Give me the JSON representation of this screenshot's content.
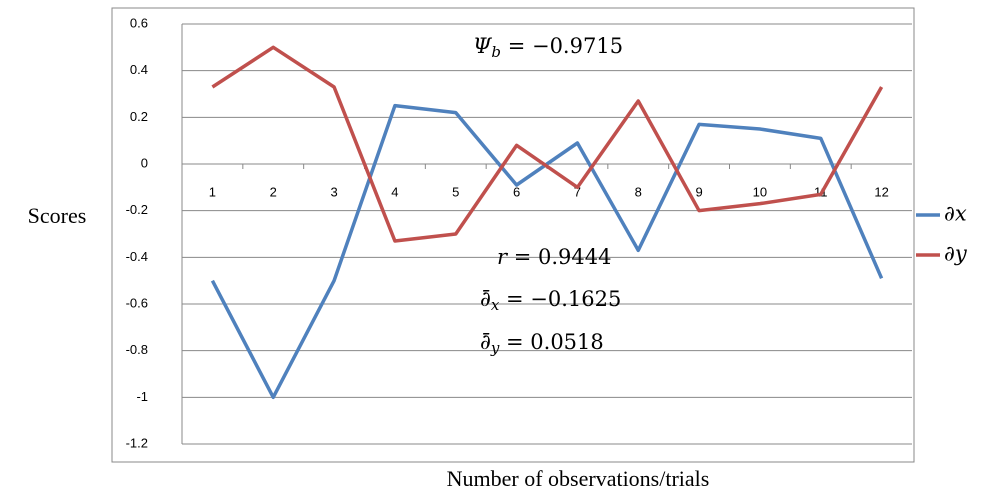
{
  "chart_data": {
    "type": "line",
    "x_label": "Number of observations/trials",
    "y_label": "Scores",
    "categories": [
      "1",
      "2",
      "3",
      "4",
      "5",
      "6",
      "7",
      "8",
      "9",
      "10",
      "11",
      "12"
    ],
    "series": [
      {
        "name": "∂x",
        "color": "#4f81bd",
        "values": [
          -0.5,
          -1.0,
          -0.5,
          0.25,
          0.22,
          -0.09,
          0.09,
          -0.37,
          0.17,
          0.15,
          0.11,
          -0.49
        ]
      },
      {
        "name": "∂y",
        "color": "#c0504d",
        "values": [
          0.33,
          0.5,
          0.33,
          -0.33,
          -0.3,
          0.08,
          -0.1,
          0.27,
          -0.2,
          -0.17,
          -0.13,
          0.33
        ]
      }
    ],
    "ylim": [
      -1.2,
      0.6
    ],
    "yticks": [
      -1.2,
      -1,
      -0.8,
      -0.6,
      -0.4,
      -0.2,
      0,
      0.2,
      0.4,
      0.6
    ],
    "grid": true,
    "legend": "right",
    "annotations": [
      {
        "base": "Ψ",
        "sub": "b",
        "rest": " = −0.9715"
      },
      {
        "base": "r",
        "sub": "",
        "rest": " = 0.9444"
      },
      {
        "base": "∂̄",
        "sub": "x",
        "rest": " = −0.1625"
      },
      {
        "base": "∂̄",
        "sub": "y",
        "rest": " = 0.0518"
      }
    ]
  }
}
